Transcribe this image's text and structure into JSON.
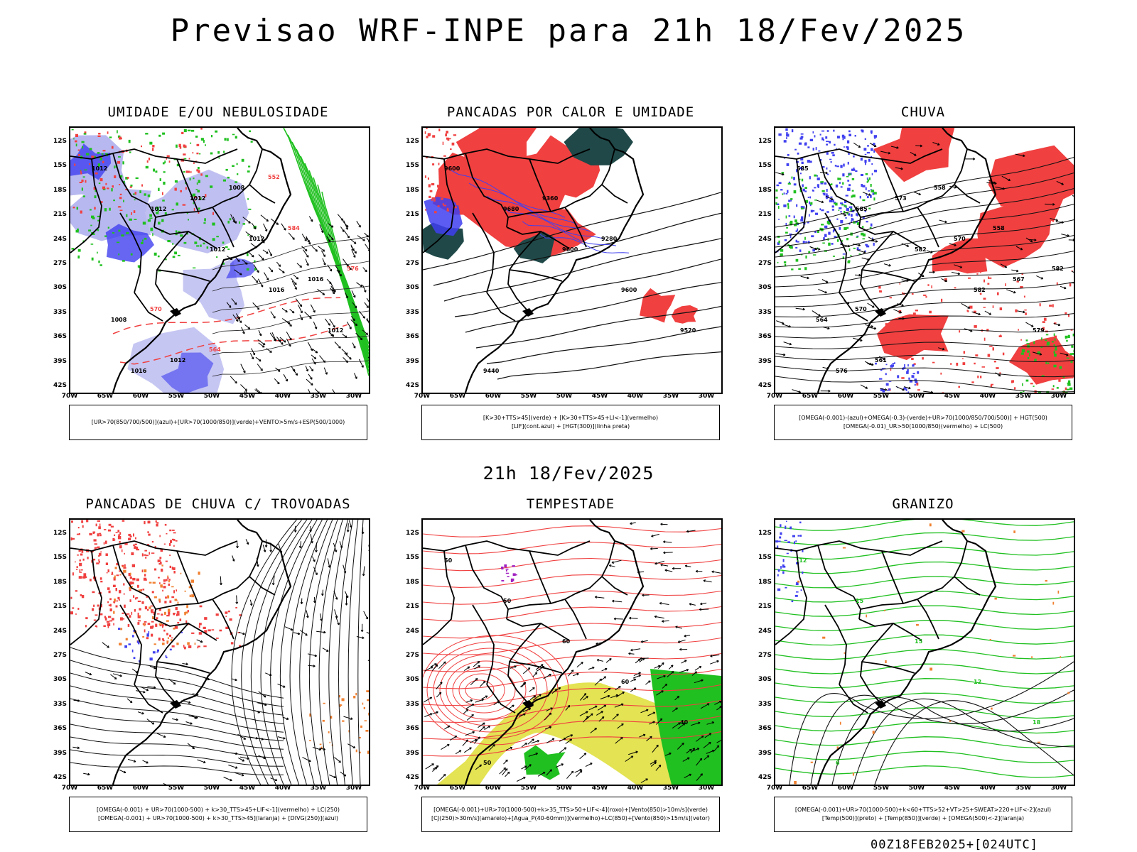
{
  "header": {
    "title": "Previsao WRF-INPE  para 21h 18/Fev/2025"
  },
  "mid_title": "21h 18/Fev/2025",
  "footer": "00Z18FEB2025+[024UTC]",
  "axes": {
    "lat_labels": [
      "12S",
      "15S",
      "18S",
      "21S",
      "24S",
      "27S",
      "30S",
      "33S",
      "36S",
      "39S",
      "42S"
    ],
    "lon_labels": [
      "70W",
      "65W",
      "60W",
      "55W",
      "50W",
      "45W",
      "40W",
      "35W",
      "30W"
    ]
  },
  "colors": {
    "red": "#f04040",
    "green": "#20c020",
    "blue": "#4040f0",
    "lavender": "#b8b8f0",
    "darkteal": "#204848",
    "yellow": "#e0e040",
    "orange": "#f08030",
    "purple": "#a020c0"
  },
  "panels": [
    {
      "title": "UMIDADE E/OU NEBULOSIDADE",
      "legend": [
        "[UR>70(850/700/500)](azul)+[UR>70(1000/850)](verde)+VENTO>5m/s+ESP(500/1000)"
      ],
      "labels": [
        "1012",
        "1012",
        "1012",
        "1016",
        "1012",
        "1016",
        "1012",
        "1012",
        "1016",
        "1008",
        "1012",
        "1008",
        "584",
        "576",
        "570",
        "564",
        "552"
      ]
    },
    {
      "title": "PANCADAS POR CALOR E UMIDADE",
      "legend": [
        "[K>30+TTS>45](verde) + [K>30+TTS>45+LI<-1](vermelho)",
        "[LIF](cont.azul) + [HGT(300)](linha preta)"
      ],
      "labels": [
        "9600",
        "9680",
        "9600",
        "9600",
        "9520",
        "9440",
        "9360",
        "9280"
      ]
    },
    {
      "title": "CHUVA",
      "legend": [
        "[OMEGA(-0.001)-(azul)+OMEGA(-0.3)-(verde)+UR>70(1000/850/700/500)] + HGT(500)",
        "[OMEGA(-0.01)_UR>50(1000/850)(vermelho) + LC(500)"
      ],
      "labels": [
        "585",
        "585",
        "582",
        "582",
        "579",
        "576",
        "573",
        "570",
        "567",
        "564",
        "561",
        "558",
        "558",
        "582",
        "570"
      ]
    },
    {
      "title": "PANCADAS DE CHUVA C/ TROVOADAS",
      "legend": [
        "[OMEGA(-0.001) + UR>70(1000-500) + k>30_TTS>45+LIF<-1](vermelho) + LC(250)",
        "[OMEGA(-0.001) + UR>70(1000-500) + k>30_TTS>45](laranja) + [DIVG(250)](azul)"
      ],
      "labels": []
    },
    {
      "title": "TEMPESTADE",
      "legend": [
        "[OMEGA(-0.001)+UR>70(1000-500)+k>35_TTS>50+LIF<-4](roxo)+[Vento(850)>10m/s](verde)",
        "[CJ(250)>30m/s](amarelo)+[Agua_P(40-60mm)](vermelho)+LC(850)+[Vento(850)>15m/s](vetor)"
      ],
      "labels": [
        "50",
        "50",
        "60",
        "60",
        "40",
        "50"
      ]
    },
    {
      "title": "GRANIZO",
      "legend": [
        "[OMEGA(-0.001)+UR>70(1000-500)+k<60+TTS>52+VT>25+SWEAT>220+LIF<-2](azul)",
        "[Temp(500)](preto) + [Temp(850)](verde) + [OMEGA(500)<-2](laranja)"
      ],
      "labels": [
        "-12",
        "15",
        "15",
        "12",
        "18",
        "6"
      ]
    }
  ]
}
